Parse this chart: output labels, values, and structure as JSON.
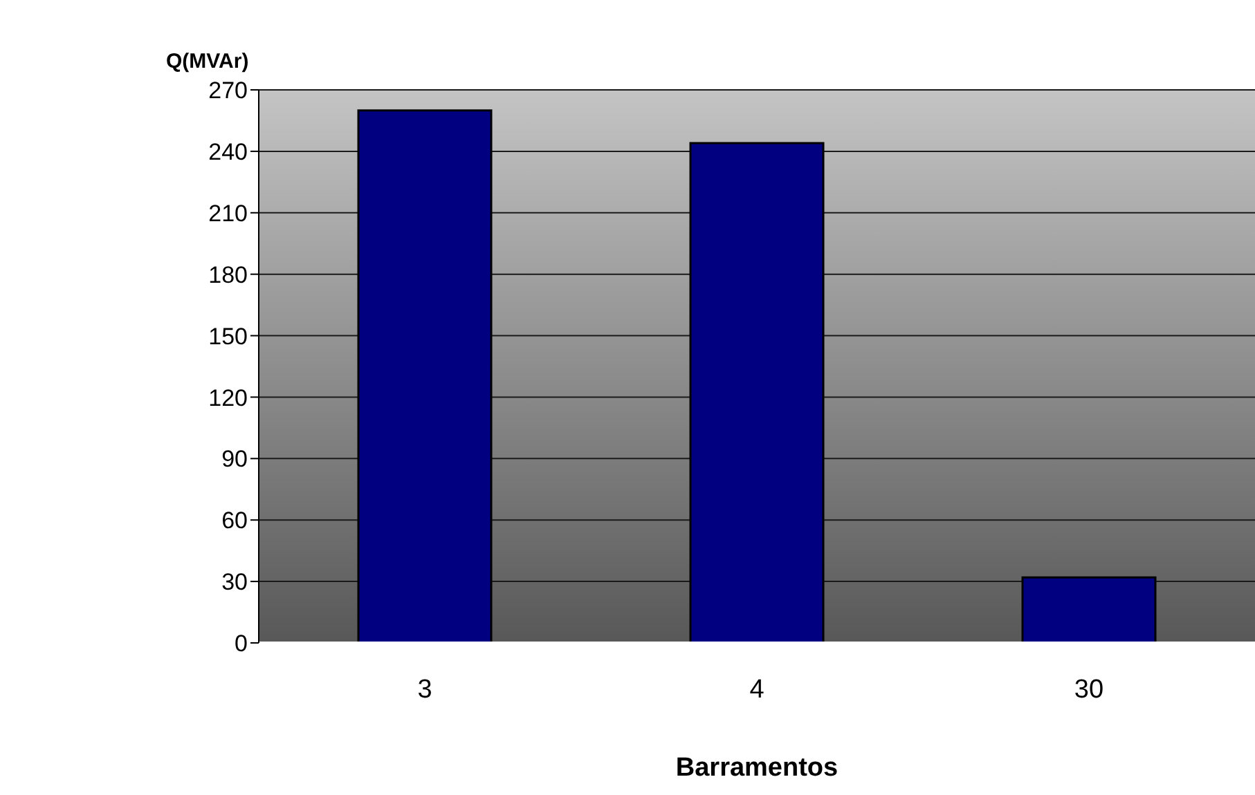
{
  "chart_data": {
    "type": "bar",
    "ylabel": "Q(MVAr)",
    "xlabel": "Barramentos",
    "categories": [
      "3",
      "4",
      "30"
    ],
    "values": [
      260,
      244,
      32
    ],
    "color": "#000080",
    "ylim": [
      0,
      270
    ],
    "yticks": [
      0,
      30,
      60,
      90,
      120,
      150,
      180,
      210,
      240,
      270
    ],
    "grid": "y"
  }
}
